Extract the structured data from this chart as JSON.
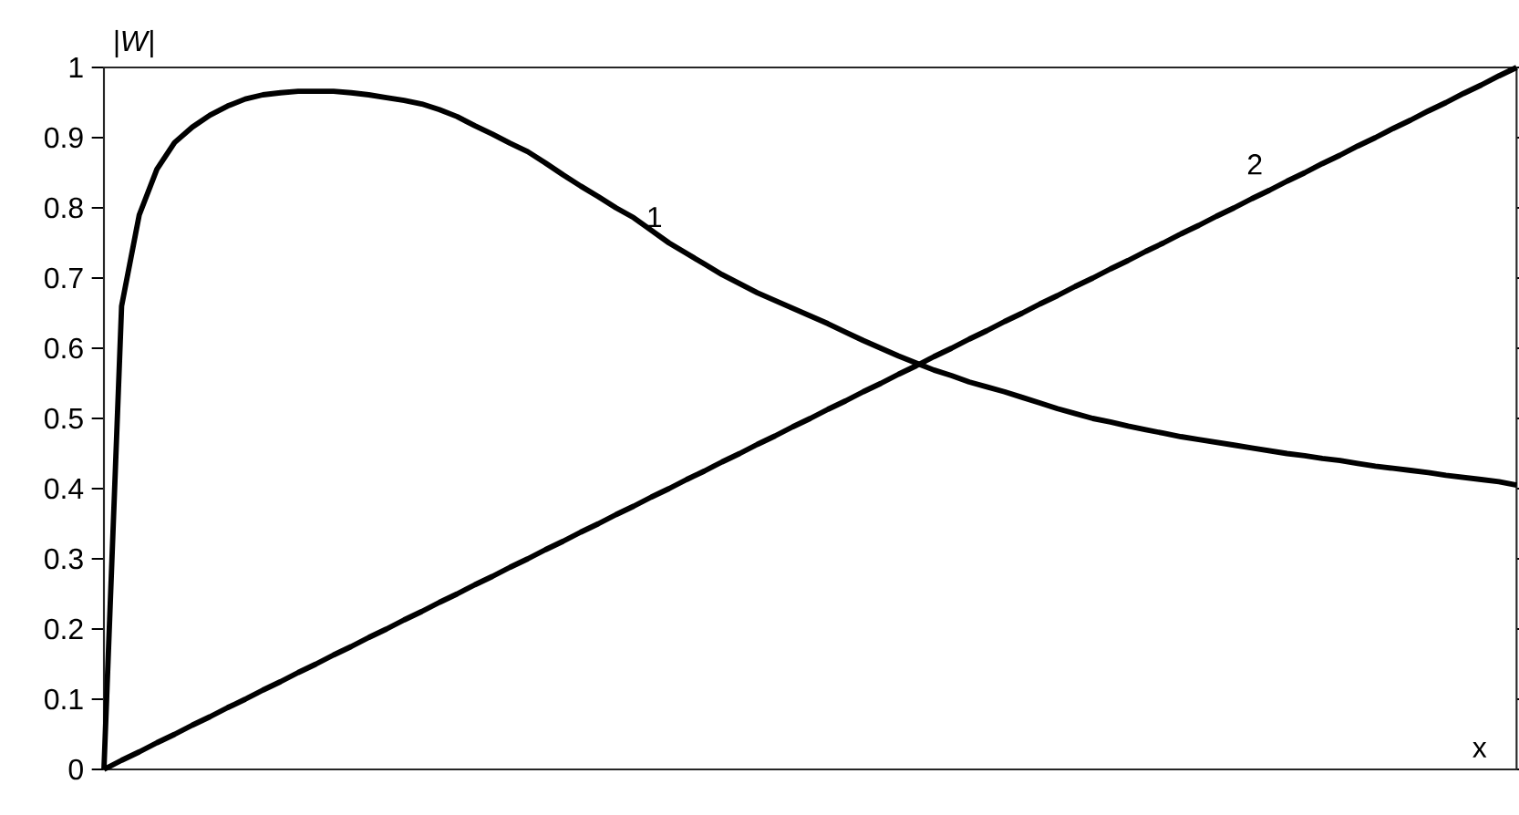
{
  "chart_data": {
    "type": "line",
    "xlabel": "x",
    "ylabel": "|W|",
    "categories": [
      null,
      null,
      null,
      null,
      null,
      null,
      null,
      null,
      null,
      null,
      null,
      null,
      null,
      null,
      null,
      null,
      null,
      null,
      null,
      null,
      null,
      null,
      null,
      null,
      null,
      null,
      null,
      null,
      null,
      null,
      null,
      null,
      null,
      null,
      null,
      null,
      null,
      null,
      null,
      null,
      null,
      null,
      null,
      null,
      null,
      null,
      null,
      null,
      null,
      null,
      null,
      null,
      null,
      null,
      null,
      null,
      null,
      null,
      null,
      null,
      null,
      null,
      null,
      null,
      null,
      null,
      null,
      null,
      null,
      null,
      null,
      null,
      null,
      null,
      null,
      null,
      null,
      null,
      null,
      null,
      null
    ],
    "series": [
      {
        "name": "1",
        "color": "#000000",
        "values": [
          0,
          0.66,
          0.79,
          0.855,
          0.893,
          0.915,
          0.932,
          0.945,
          0.955,
          0.961,
          0.964,
          0.966,
          0.966,
          0.966,
          0.964,
          0.961,
          0.957,
          0.953,
          0.948,
          0.94,
          0.93,
          0.917,
          0.905,
          0.892,
          0.88,
          0.864,
          0.847,
          0.831,
          0.816,
          0.8,
          0.786,
          0.768,
          0.75,
          0.735,
          0.72,
          0.705,
          0.692,
          0.679,
          0.668,
          0.657,
          0.646,
          0.635,
          0.623,
          0.611,
          0.6,
          0.589,
          0.579,
          0.569,
          0.561,
          0.552,
          0.545,
          0.538,
          0.53,
          0.522,
          0.514,
          0.507,
          0.5,
          0.495,
          0.489,
          0.484,
          0.479,
          0.474,
          0.47,
          0.466,
          0.462,
          0.458,
          0.454,
          0.45,
          0.447,
          0.443,
          0.44,
          0.436,
          0.432,
          0.429,
          0.426,
          0.423,
          0.419,
          0.416,
          0.413,
          0.41,
          0.405
        ]
      },
      {
        "name": "2",
        "color": "#000000",
        "values": [
          0,
          0.013,
          0.025,
          0.038,
          0.05,
          0.063,
          0.075,
          0.088,
          0.1,
          0.113,
          0.125,
          0.138,
          0.15,
          0.163,
          0.175,
          0.188,
          0.2,
          0.213,
          0.225,
          0.238,
          0.25,
          0.263,
          0.275,
          0.288,
          0.3,
          0.313,
          0.325,
          0.338,
          0.35,
          0.363,
          0.375,
          0.388,
          0.4,
          0.413,
          0.425,
          0.438,
          0.45,
          0.463,
          0.475,
          0.488,
          0.5,
          0.513,
          0.525,
          0.538,
          0.55,
          0.563,
          0.575,
          0.588,
          0.6,
          0.613,
          0.625,
          0.638,
          0.65,
          0.663,
          0.675,
          0.688,
          0.7,
          0.713,
          0.725,
          0.738,
          0.75,
          0.763,
          0.775,
          0.788,
          0.8,
          0.813,
          0.825,
          0.838,
          0.85,
          0.863,
          0.875,
          0.888,
          0.9,
          0.913,
          0.925,
          0.938,
          0.95,
          0.963,
          0.975,
          0.988,
          1
        ]
      }
    ],
    "ylim": [
      0,
      1
    ],
    "yticks": [
      0,
      0.1,
      0.2,
      0.3,
      0.4,
      0.5,
      0.6,
      0.7,
      0.8,
      0.9,
      1
    ],
    "tick_labels": "y",
    "line_style": "solid",
    "marker": "none"
  }
}
